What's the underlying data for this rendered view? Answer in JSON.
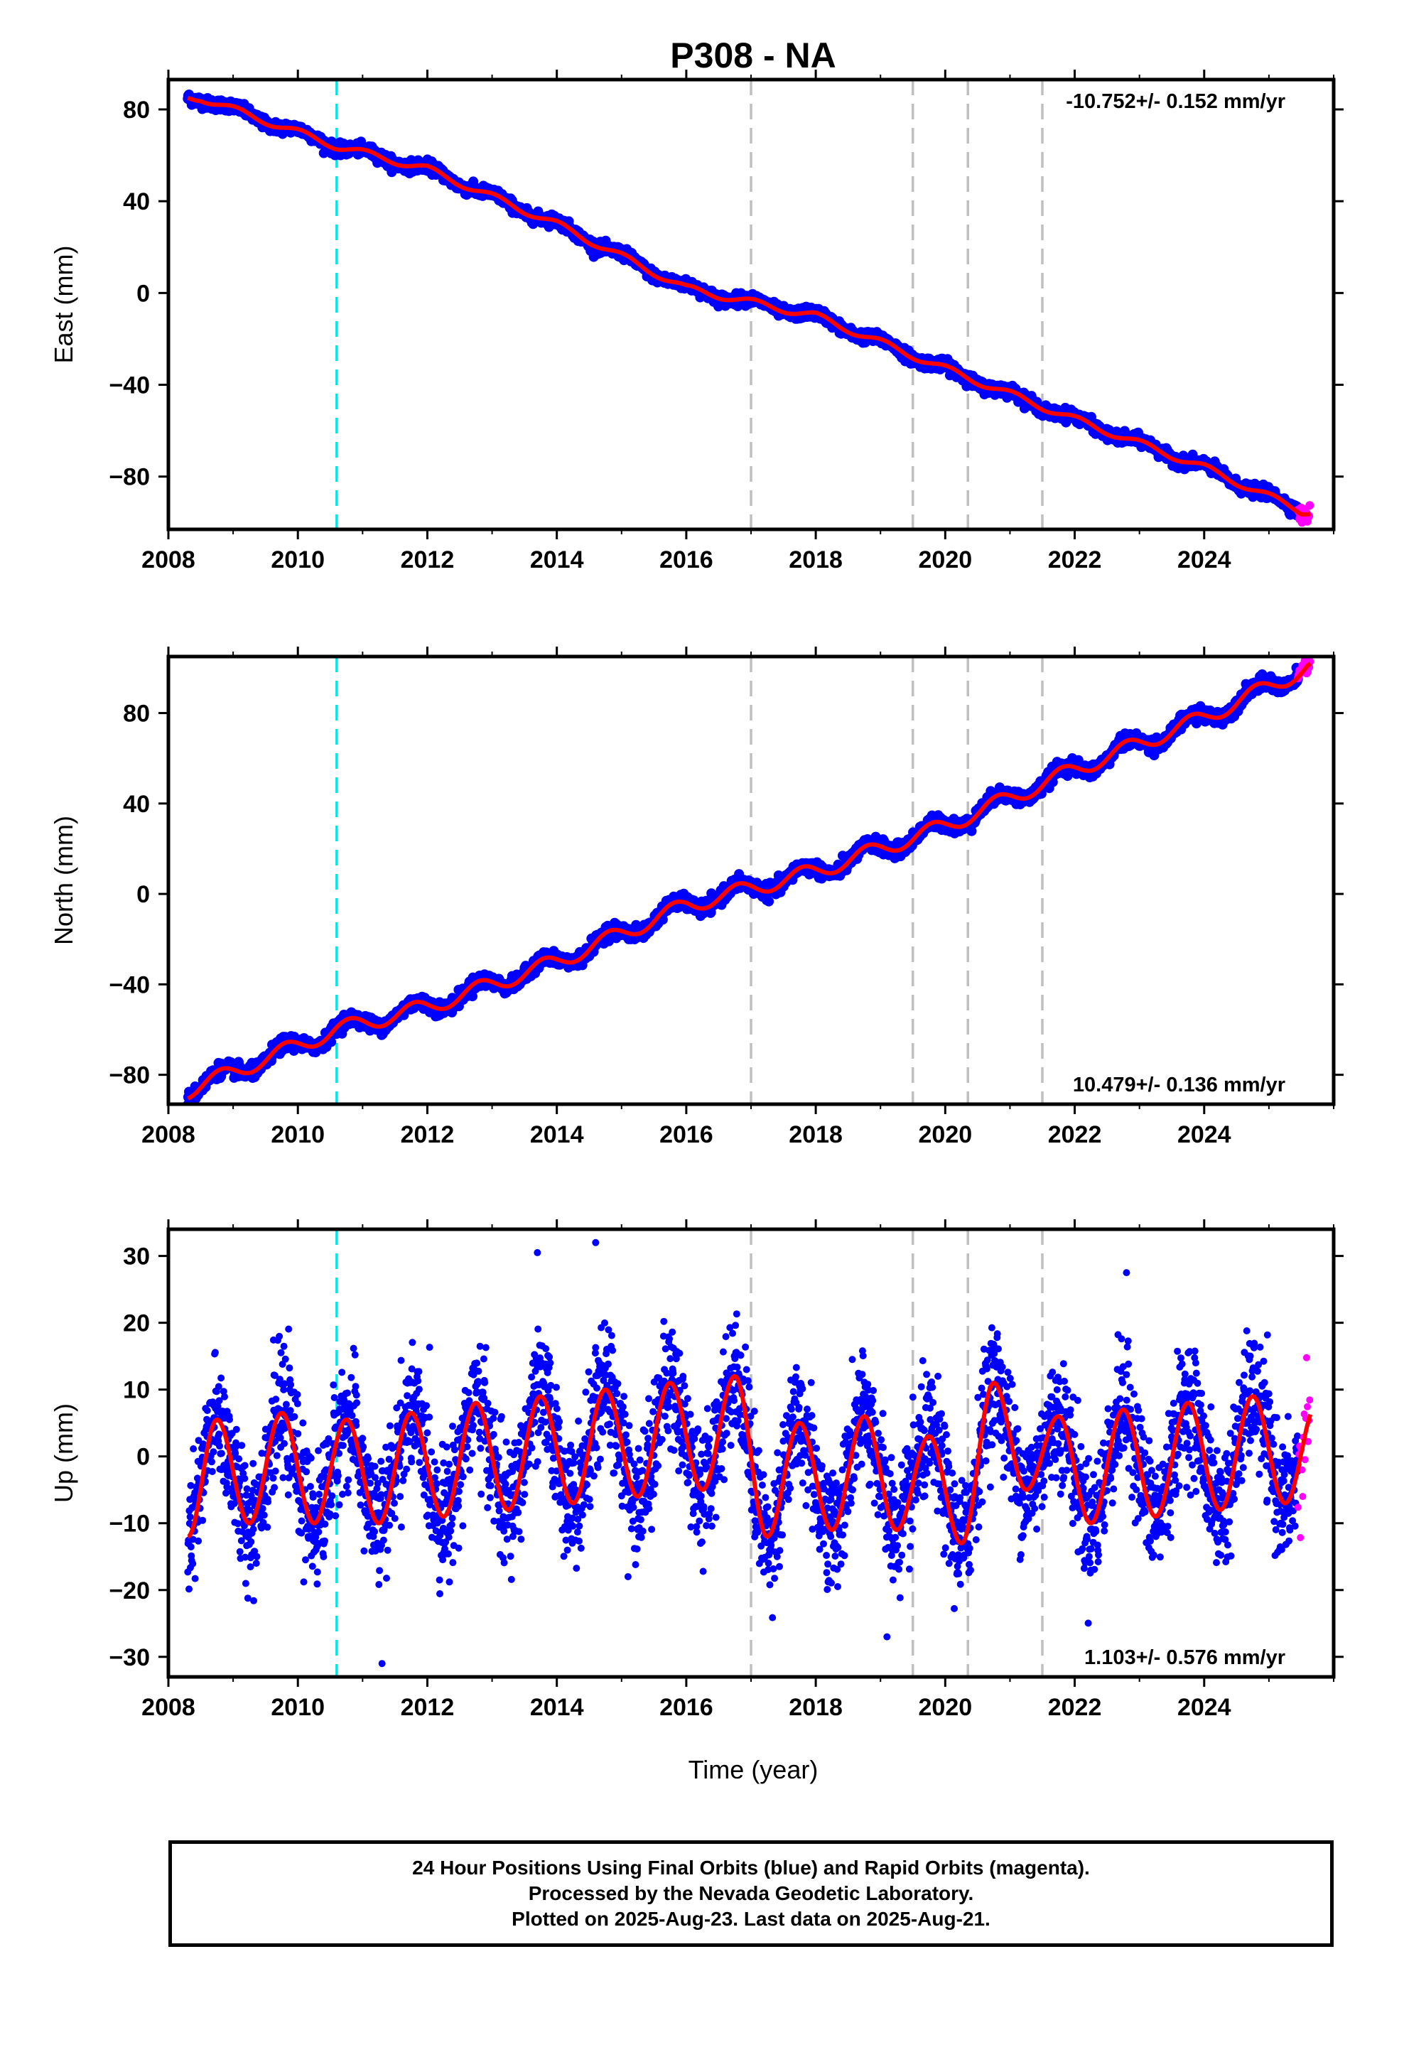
{
  "colors": {
    "final_orbits": "#0000ff",
    "rapid_orbits": "#ff00ff",
    "model_fit": "#ff0000",
    "event_cyan": "#00e5e5",
    "event_gray": "#bfbfbf"
  },
  "chart_data": {
    "type": "scatter",
    "title": "P308 - NA",
    "xlabel": "Time (year)",
    "x_ticks": [
      "2008",
      "2010",
      "2012",
      "2014",
      "2016",
      "2018",
      "2020",
      "2022",
      "2024"
    ],
    "xlim": [
      2008,
      2026
    ],
    "event_lines": [
      {
        "x": 2010.6,
        "color": "cyan",
        "style": "dashed"
      },
      {
        "x": 2017.0,
        "color": "gray",
        "style": "dashed"
      },
      {
        "x": 2019.5,
        "color": "gray",
        "style": "dashed"
      },
      {
        "x": 2020.35,
        "color": "gray",
        "style": "dashed"
      },
      {
        "x": 2021.5,
        "color": "gray",
        "style": "dashed"
      }
    ],
    "data_range": {
      "start": 2008.3,
      "final_end": 2025.45,
      "rapid_start": 2025.45,
      "end": 2025.64
    },
    "panels": [
      {
        "ylabel": "East (mm)",
        "ylim": [
          -103,
          93
        ],
        "y_ticks": [
          -80,
          -40,
          0,
          40,
          80
        ],
        "y_tick_labels": [
          "−80",
          "−40",
          "0",
          "40",
          "80"
        ],
        "rate": "-10.752+/- 0.152 mm/yr",
        "rate_position": "top-right",
        "trend_mm_per_yr": -10.752,
        "offset_at_2008.3": 85,
        "seasonal_amplitude_mm": 1.5,
        "seasonal_phase_year": 0.8,
        "scatter_mm": 1.2,
        "y_at_year": {
          "2008.5": 85,
          "2010.6": 64,
          "2012": 54,
          "2014": 30,
          "2016": 2,
          "2018": -10,
          "2020": -33,
          "2022": -55,
          "2024": -76,
          "2025.5": -95
        }
      },
      {
        "ylabel": "North (mm)",
        "ylim": [
          -93,
          105
        ],
        "y_ticks": [
          -80,
          -40,
          0,
          40,
          80
        ],
        "y_tick_labels": [
          "−80",
          "−40",
          "0",
          "40",
          "80"
        ],
        "rate": "10.479+/- 0.136 mm/yr",
        "rate_position": "bottom-right",
        "trend_mm_per_yr": 10.479,
        "offset_at_2008.3": -86,
        "seasonal_amplitude_mm": 3.5,
        "seasonal_phase_year": 0.55,
        "scatter_mm": 1.5,
        "y_at_year": {
          "2008.3": -87,
          "2010.6": -60,
          "2012": -50,
          "2014": -30,
          "2016": -5,
          "2018": 10,
          "2020": 30,
          "2022": 55,
          "2024": 78,
          "2025.6": 100
        }
      },
      {
        "ylabel": "Up (mm)",
        "ylim": [
          -33,
          34
        ],
        "y_ticks": [
          -30,
          -20,
          -10,
          0,
          10,
          20,
          30
        ],
        "y_tick_labels": [
          "−30",
          "−20",
          "−10",
          "0",
          "10",
          "20",
          "30"
        ],
        "rate": "1.103+/- 0.576 mm/yr",
        "rate_position": "bottom-right",
        "trend_mm_per_yr": 1.103,
        "seasonal_peaks": [
          {
            "x": 2008.75,
            "y": 5.5
          },
          {
            "x": 2009.75,
            "y": 6.5
          },
          {
            "x": 2010.75,
            "y": 5.5
          },
          {
            "x": 2011.75,
            "y": 6.5
          },
          {
            "x": 2012.75,
            "y": 8
          },
          {
            "x": 2013.75,
            "y": 9
          },
          {
            "x": 2014.75,
            "y": 10
          },
          {
            "x": 2015.75,
            "y": 11
          },
          {
            "x": 2016.75,
            "y": 12
          },
          {
            "x": 2017.75,
            "y": 5
          },
          {
            "x": 2018.75,
            "y": 6
          },
          {
            "x": 2019.75,
            "y": 3
          },
          {
            "x": 2020.75,
            "y": 11
          },
          {
            "x": 2021.75,
            "y": 6
          },
          {
            "x": 2022.75,
            "y": 7
          },
          {
            "x": 2023.75,
            "y": 8
          },
          {
            "x": 2024.75,
            "y": 9
          }
        ],
        "seasonal_troughs": [
          {
            "x": 2008.3,
            "y": -12
          },
          {
            "x": 2009.25,
            "y": -10
          },
          {
            "x": 2010.25,
            "y": -10
          },
          {
            "x": 2011.25,
            "y": -10
          },
          {
            "x": 2012.25,
            "y": -9
          },
          {
            "x": 2013.25,
            "y": -8
          },
          {
            "x": 2014.25,
            "y": -7
          },
          {
            "x": 2015.25,
            "y": -6
          },
          {
            "x": 2016.25,
            "y": -5
          },
          {
            "x": 2017.25,
            "y": -12
          },
          {
            "x": 2018.25,
            "y": -11
          },
          {
            "x": 2019.25,
            "y": -11
          },
          {
            "x": 2020.25,
            "y": -13
          },
          {
            "x": 2021.25,
            "y": -5
          },
          {
            "x": 2022.25,
            "y": -10
          },
          {
            "x": 2023.25,
            "y": -9
          },
          {
            "x": 2024.25,
            "y": -8
          },
          {
            "x": 2025.25,
            "y": -7
          }
        ],
        "scatter_mm": 4.5,
        "min_y": -31,
        "max_y": 32
      }
    ]
  },
  "footer": {
    "line1": "24 Hour Positions Using Final Orbits (blue) and Rapid Orbits (magenta).",
    "line2": "Processed by the Nevada Geodetic Laboratory.",
    "line3": "Plotted on 2025-Aug-23. Last data on 2025-Aug-21."
  }
}
